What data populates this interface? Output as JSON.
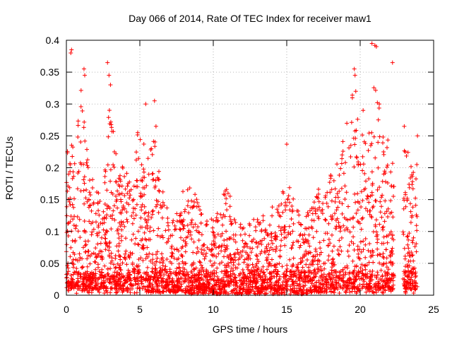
{
  "chart_data": {
    "type": "scatter",
    "title": "Day 066 of 2014, Rate Of TEC Index for receiver maw1",
    "xlabel": "GPS time / hours",
    "ylabel": "ROTI / TECUs",
    "xlim": [
      0,
      25
    ],
    "ylim": [
      0,
      0.4
    ],
    "grid": true,
    "x_ticks": [
      0,
      5,
      10,
      15,
      20,
      25
    ],
    "y_ticks": [
      0,
      0.05,
      0.1,
      0.15,
      0.2,
      0.25,
      0.3,
      0.35,
      0.4
    ],
    "x_tick_labels": [
      "0",
      "5",
      "10",
      "15",
      "20",
      "25"
    ],
    "y_tick_labels": [
      "0",
      "0.05",
      "0.1",
      "0.15",
      "0.2",
      "0.25",
      "0.3",
      "0.35",
      "0.4"
    ],
    "marker": "+",
    "marker_color": "#ff0000",
    "data_range_hours": [
      0,
      23.9
    ],
    "envelope": {
      "x": [
        0,
        0.5,
        1,
        1.5,
        2,
        2.5,
        3,
        3.5,
        4,
        4.5,
        5,
        5.5,
        6,
        6.5,
        7,
        7.5,
        8,
        8.5,
        9,
        9.5,
        10,
        10.5,
        11,
        11.5,
        12,
        12.5,
        13,
        13.5,
        14,
        14.5,
        15,
        15.5,
        16,
        16.5,
        17,
        17.5,
        18,
        18.5,
        19,
        19.5,
        20,
        20.5,
        21,
        21.5,
        22,
        22.5,
        23,
        23.5,
        23.9
      ],
      "upper": [
        0.3,
        0.26,
        0.34,
        0.21,
        0.17,
        0.15,
        0.33,
        0.19,
        0.21,
        0.18,
        0.29,
        0.21,
        0.25,
        0.17,
        0.13,
        0.13,
        0.17,
        0.18,
        0.15,
        0.12,
        0.12,
        0.16,
        0.17,
        0.12,
        0.11,
        0.12,
        0.12,
        0.13,
        0.14,
        0.15,
        0.19,
        0.15,
        0.13,
        0.13,
        0.17,
        0.17,
        0.19,
        0.22,
        0.27,
        0.32,
        0.27,
        0.23,
        0.35,
        0.29,
        0.23,
        0.18,
        0.24,
        0.21,
        0.22
      ],
      "lower": [
        0.01,
        0.01,
        0.01,
        0.01,
        0.01,
        0.01,
        0.01,
        0.01,
        0.01,
        0.01,
        0.01,
        0.005,
        0.005,
        0.005,
        0.005,
        0.005,
        0.005,
        0.002,
        0.002,
        0.002,
        0.002,
        0.002,
        0.002,
        0.002,
        0.002,
        0.002,
        0.002,
        0.002,
        0.002,
        0.002,
        0.002,
        0.002,
        0.002,
        0.002,
        0.005,
        0.005,
        0.005,
        0.01,
        0.01,
        0.01,
        0.01,
        0.01,
        0.01,
        0.01,
        0.01,
        0.01,
        0.01,
        0.01,
        0.01
      ]
    },
    "gap_hours": [
      22.3,
      22.9
    ],
    "outliers": [
      {
        "x": 0.3,
        "y": 0.38
      },
      {
        "x": 0.35,
        "y": 0.385
      },
      {
        "x": 1.2,
        "y": 0.355
      },
      {
        "x": 1.25,
        "y": 0.345
      },
      {
        "x": 2.8,
        "y": 0.365
      },
      {
        "x": 2.9,
        "y": 0.345
      },
      {
        "x": 3.0,
        "y": 0.33
      },
      {
        "x": 5.4,
        "y": 0.3
      },
      {
        "x": 6.0,
        "y": 0.305
      },
      {
        "x": 6.1,
        "y": 0.265
      },
      {
        "x": 15.0,
        "y": 0.237
      },
      {
        "x": 19.6,
        "y": 0.355
      },
      {
        "x": 19.65,
        "y": 0.345
      },
      {
        "x": 19.7,
        "y": 0.32
      },
      {
        "x": 20.2,
        "y": 0.29
      },
      {
        "x": 20.8,
        "y": 0.395
      },
      {
        "x": 21.0,
        "y": 0.392
      },
      {
        "x": 21.1,
        "y": 0.39
      },
      {
        "x": 21.3,
        "y": 0.3
      },
      {
        "x": 22.2,
        "y": 0.365
      },
      {
        "x": 23.0,
        "y": 0.265
      },
      {
        "x": 23.9,
        "y": 0.25
      }
    ],
    "point_count": 2400,
    "seed": 66
  }
}
